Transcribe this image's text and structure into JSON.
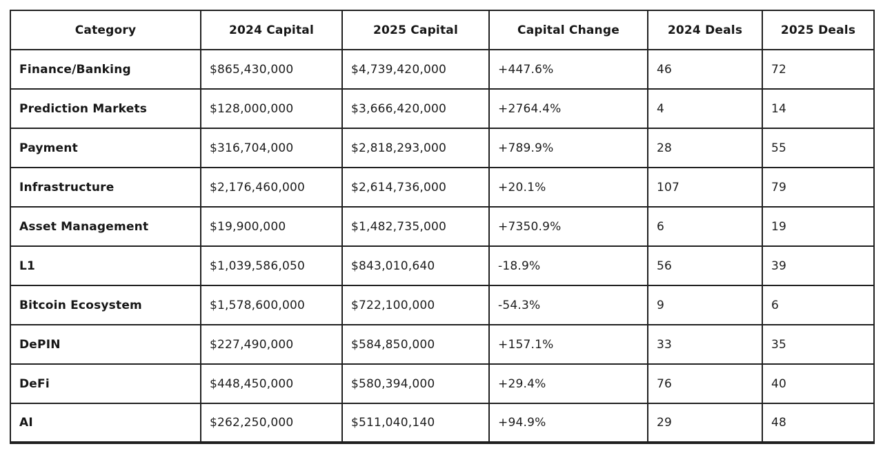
{
  "table": {
    "headers": [
      "Category",
      "2024 Capital",
      "2025 Capital",
      "Capital Change",
      "2024 Deals",
      "2025 Deals"
    ],
    "rows": [
      [
        "Finance/Banking",
        "$865,430,000",
        "$4,739,420,000",
        "+447.6%",
        "46",
        "72"
      ],
      [
        "Prediction Markets",
        "$128,000,000",
        "$3,666,420,000",
        "+2764.4%",
        "4",
        "14"
      ],
      [
        "Payment",
        "$316,704,000",
        "$2,818,293,000",
        "+789.9%",
        "28",
        "55"
      ],
      [
        "Infrastructure",
        "$2,176,460,000",
        "$2,614,736,000",
        "+20.1%",
        "107",
        "79"
      ],
      [
        "Asset Management",
        "$19,900,000",
        "$1,482,735,000",
        "+7350.9%",
        "6",
        "19"
      ],
      [
        "L1",
        "$1,039,586,050",
        "$843,010,640",
        "-18.9%",
        "56",
        "39"
      ],
      [
        "Bitcoin Ecosystem",
        "$1,578,600,000",
        "$722,100,000",
        "-54.3%",
        "9",
        "6"
      ],
      [
        "DePIN",
        "$227,490,000",
        "$584,850,000",
        "+157.1%",
        "33",
        "35"
      ],
      [
        "DeFi",
        "$448,450,000",
        "$580,394,000",
        "+29.4%",
        "76",
        "40"
      ],
      [
        "AI",
        "$262,250,000",
        "$511,040,140",
        "+94.9%",
        "29",
        "48"
      ]
    ]
  },
  "chart_data": {
    "type": "table",
    "columns": [
      "Category",
      "2024 Capital",
      "2025 Capital",
      "Capital Change",
      "2024 Deals",
      "2025 Deals"
    ],
    "rows": [
      {
        "category": "Finance/Banking",
        "capital_2024": 865430000,
        "capital_2025": 4739420000,
        "capital_change_pct": 447.6,
        "deals_2024": 46,
        "deals_2025": 72
      },
      {
        "category": "Prediction Markets",
        "capital_2024": 128000000,
        "capital_2025": 3666420000,
        "capital_change_pct": 2764.4,
        "deals_2024": 4,
        "deals_2025": 14
      },
      {
        "category": "Payment",
        "capital_2024": 316704000,
        "capital_2025": 2818293000,
        "capital_change_pct": 789.9,
        "deals_2024": 28,
        "deals_2025": 55
      },
      {
        "category": "Infrastructure",
        "capital_2024": 2176460000,
        "capital_2025": 2614736000,
        "capital_change_pct": 20.1,
        "deals_2024": 107,
        "deals_2025": 79
      },
      {
        "category": "Asset Management",
        "capital_2024": 19900000,
        "capital_2025": 1482735000,
        "capital_change_pct": 7350.9,
        "deals_2024": 6,
        "deals_2025": 19
      },
      {
        "category": "L1",
        "capital_2024": 1039586050,
        "capital_2025": 843010640,
        "capital_change_pct": -18.9,
        "deals_2024": 56,
        "deals_2025": 39
      },
      {
        "category": "Bitcoin Ecosystem",
        "capital_2024": 1578600000,
        "capital_2025": 722100000,
        "capital_change_pct": -54.3,
        "deals_2024": 9,
        "deals_2025": 6
      },
      {
        "category": "DePIN",
        "capital_2024": 227490000,
        "capital_2025": 584850000,
        "capital_change_pct": 157.1,
        "deals_2024": 33,
        "deals_2025": 35
      },
      {
        "category": "DeFi",
        "capital_2024": 448450000,
        "capital_2025": 580394000,
        "capital_change_pct": 29.4,
        "deals_2024": 76,
        "deals_2025": 40
      },
      {
        "category": "AI",
        "capital_2024": 262250000,
        "capital_2025": 511040140,
        "capital_change_pct": 94.9,
        "deals_2024": 29,
        "deals_2025": 48
      }
    ]
  },
  "colors": {
    "border": "#1f1f1f",
    "text": "#1c1c1c",
    "background": "#ffffff"
  }
}
